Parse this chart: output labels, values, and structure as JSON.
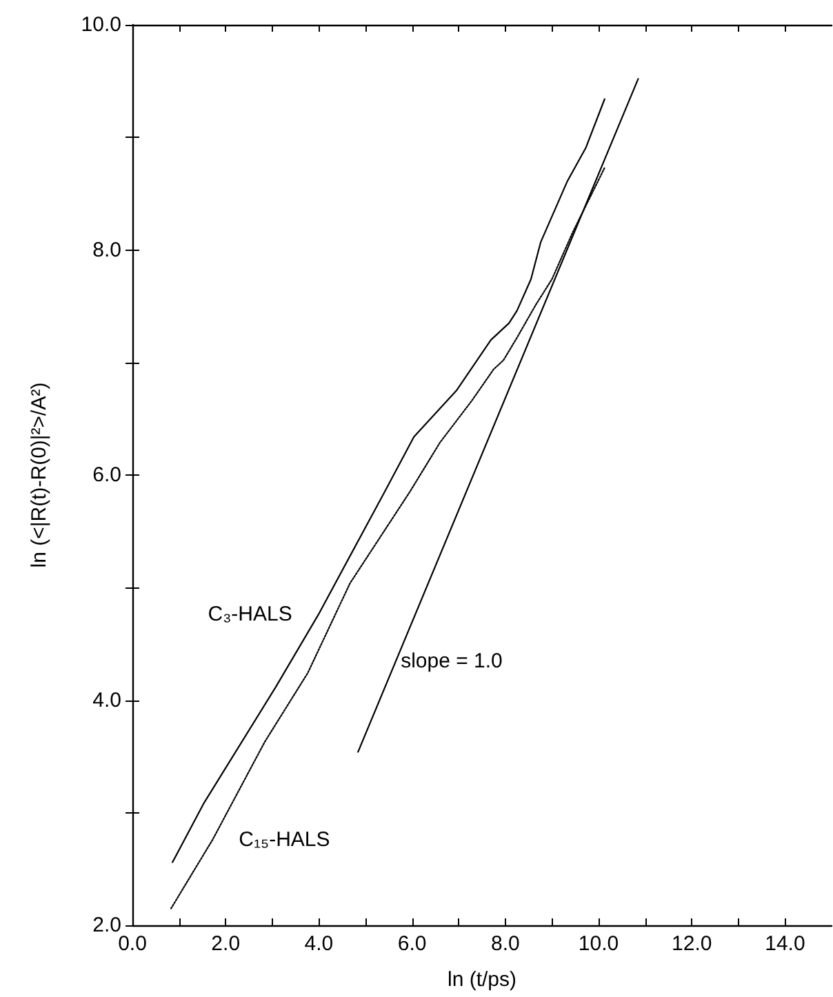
{
  "chart_data": {
    "type": "line",
    "xlabel": "ln (t/ps)",
    "ylabel": "ln (<|R(t)-R(0)|²>/A²)",
    "xlim": [
      0,
      15
    ],
    "ylim": [
      2,
      10
    ],
    "xticks": [
      {
        "value": 0,
        "label": "0.0"
      },
      {
        "value": 1,
        "label": null
      },
      {
        "value": 2,
        "label": "2.0"
      },
      {
        "value": 3,
        "label": null
      },
      {
        "value": 4,
        "label": "4.0"
      },
      {
        "value": 5,
        "label": null
      },
      {
        "value": 6,
        "label": "6.0"
      },
      {
        "value": 7,
        "label": null
      },
      {
        "value": 8,
        "label": "8.0"
      },
      {
        "value": 9,
        "label": null
      },
      {
        "value": 10,
        "label": "10.0"
      },
      {
        "value": 11,
        "label": null
      },
      {
        "value": 12,
        "label": "12.0"
      },
      {
        "value": 13,
        "label": null
      },
      {
        "value": 14,
        "label": "14.0"
      }
    ],
    "yticks": [
      {
        "value": 2,
        "label": "2.0"
      },
      {
        "value": 3,
        "label": null
      },
      {
        "value": 4,
        "label": "4.0"
      },
      {
        "value": 5,
        "label": null
      },
      {
        "value": 6,
        "label": "6.0"
      },
      {
        "value": 7,
        "label": null
      },
      {
        "value": 8,
        "label": "8.0"
      },
      {
        "value": 9,
        "label": null
      },
      {
        "value": 10,
        "label": "10.0"
      }
    ],
    "marker": "none",
    "series": [
      {
        "name": "C₃-HALS",
        "color": "#000000",
        "line_style": "solid",
        "x": [
          0.86,
          1.54,
          3.08,
          3.99,
          5.41,
          6.04,
          6.95,
          7.69,
          8.08,
          8.25,
          8.55,
          8.76,
          9.33,
          9.73,
          10.13
        ],
        "values": [
          2.56,
          3.09,
          4.12,
          4.76,
          5.85,
          6.34,
          6.75,
          7.2,
          7.35,
          7.46,
          7.74,
          8.07,
          8.61,
          8.91,
          9.34
        ]
      },
      {
        "name": "C₁₅-HALS",
        "color": "#000000",
        "line_style": "dotted",
        "x": [
          0.83,
          1.72,
          2.84,
          3.76,
          4.67,
          5.95,
          6.6,
          7.28,
          7.75,
          7.96,
          8.25,
          8.65,
          9.0,
          9.45,
          10.13
        ],
        "values": [
          2.15,
          2.76,
          3.63,
          4.24,
          5.04,
          5.85,
          6.29,
          6.66,
          6.94,
          7.02,
          7.22,
          7.51,
          7.74,
          8.16,
          8.73
        ]
      },
      {
        "name": "slope = 1.0",
        "color": "#000000",
        "line_style": "solid",
        "x": [
          4.84,
          10.85
        ],
        "values": [
          3.54,
          9.52
        ]
      }
    ]
  }
}
